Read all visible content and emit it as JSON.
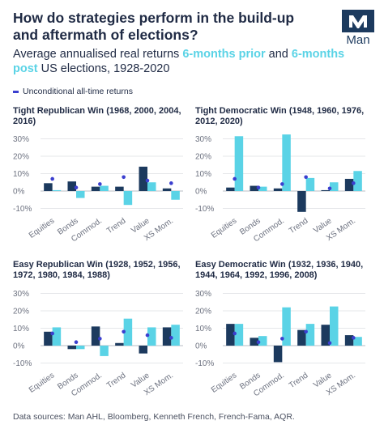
{
  "header": {
    "title": "How do strategies perform in the build-up and aftermath of elections?",
    "subtitle_pre": "Average annualised real returns ",
    "subtitle_hl1": "6-months prior",
    "subtitle_mid": " and ",
    "subtitle_hl2": "6-months post",
    "subtitle_post": " US elections, 1928-2020"
  },
  "logo": {
    "text": "Man"
  },
  "legend": {
    "label": "Unconditional all-time returns"
  },
  "source": "Data sources: Man AHL, Bloomberg, Kenneth French, French-Fama, AQR.",
  "colors": {
    "prior": "#1c3a5e",
    "post": "#5ad3e6",
    "marker": "#3b3fcf"
  },
  "chart_data": [
    {
      "type": "bar",
      "title": "Tight Republican Win (1968, 2000, 2004, 2016)",
      "categories": [
        "Equities",
        "Bonds",
        "Commod.",
        "Trend",
        "Value",
        "XS Mom."
      ],
      "series": [
        {
          "name": "6-months prior",
          "values": [
            4.5,
            5.5,
            2.5,
            2.5,
            14,
            1.5
          ]
        },
        {
          "name": "6-months post",
          "values": [
            0.5,
            -4,
            3,
            -8,
            5,
            -5
          ]
        },
        {
          "name": "Unconditional all-time returns",
          "values": [
            7,
            2,
            4,
            8,
            6,
            4.5
          ]
        }
      ],
      "yticks": [
        "30%",
        "20%",
        "10%",
        "0%",
        "-10%"
      ],
      "ylim": [
        -15,
        33
      ]
    },
    {
      "type": "bar",
      "title": "Tight Democratic Win (1948, 1960, 1976, 2012, 2020)",
      "categories": [
        "Equities",
        "Bonds",
        "Commod.",
        "Trend",
        "Value",
        "XS Mom."
      ],
      "series": [
        {
          "name": "6-months prior",
          "values": [
            2,
            3,
            1.5,
            -12,
            0.5,
            7
          ]
        },
        {
          "name": "6-months post",
          "values": [
            31.5,
            2.5,
            32.5,
            7.5,
            5,
            11.5
          ]
        },
        {
          "name": "Unconditional all-time returns",
          "values": [
            7,
            2,
            4,
            8,
            1.5,
            4.5
          ]
        }
      ],
      "yticks": [
        "30%",
        "20%",
        "10%",
        "0%",
        "-10%"
      ],
      "ylim": [
        -15,
        33
      ]
    },
    {
      "type": "bar",
      "title": "Easy Republican Win (1928, 1952, 1956, 1972, 1980, 1984, 1988)",
      "categories": [
        "Equities",
        "Bonds",
        "Commod.",
        "Trend",
        "Value",
        "XS Mom."
      ],
      "series": [
        {
          "name": "6-months prior",
          "values": [
            8,
            -2,
            11,
            1.5,
            -4.5,
            10.5
          ]
        },
        {
          "name": "6-months post",
          "values": [
            10.5,
            -2,
            -6,
            15.5,
            10.5,
            12
          ]
        },
        {
          "name": "Unconditional all-time returns",
          "values": [
            7,
            2,
            4,
            8,
            6,
            4.5
          ]
        }
      ],
      "yticks": [
        "30%",
        "20%",
        "10%",
        "0%",
        "-10%"
      ],
      "ylim": [
        -15,
        33
      ]
    },
    {
      "type": "bar",
      "title": "Easy Democratic Win (1932, 1936, 1940, 1944, 1964, 1992, 1996, 2008)",
      "categories": [
        "Equities",
        "Bonds",
        "Commod.",
        "Trend",
        "Value",
        "XS Mom."
      ],
      "series": [
        {
          "name": "6-months prior",
          "values": [
            12.5,
            4.5,
            -9.5,
            9,
            12,
            6
          ]
        },
        {
          "name": "6-months post",
          "values": [
            12.5,
            5.5,
            22,
            12.5,
            22.5,
            5
          ]
        },
        {
          "name": "Unconditional all-time returns",
          "values": [
            7,
            2,
            4,
            8,
            1.5,
            4.5
          ]
        }
      ],
      "yticks": [
        "30%",
        "20%",
        "10%",
        "0%",
        "-10%"
      ],
      "ylim": [
        -15,
        33
      ]
    }
  ]
}
